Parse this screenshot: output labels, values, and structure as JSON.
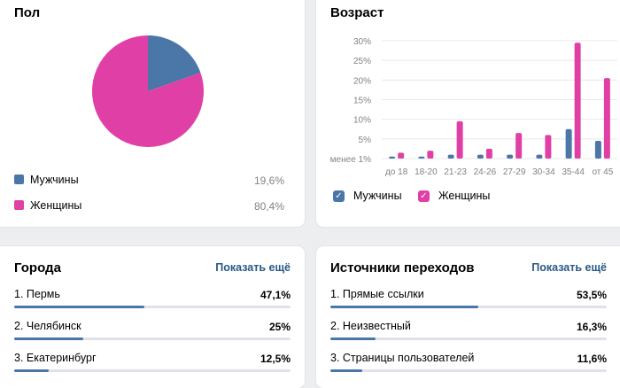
{
  "colors": {
    "male": "#4a76a8",
    "female": "#e040a6",
    "link": "#2a5885",
    "track": "#dfe2e8"
  },
  "gender": {
    "title": "Пол",
    "items": [
      {
        "label": "Мужчины",
        "value": "19,6%",
        "pct": 19.6
      },
      {
        "label": "Женщины",
        "value": "80,4%",
        "pct": 80.4
      }
    ]
  },
  "age": {
    "title": "Возраст",
    "legend": {
      "male": "Мужчины",
      "female": "Женщины"
    }
  },
  "chart_data": {
    "type": "bar",
    "title": "Возраст",
    "categories": [
      "до 18",
      "18-20",
      "21-23",
      "24-26",
      "27-29",
      "30-34",
      "35-44",
      "от 45"
    ],
    "series": [
      {
        "name": "Мужчины",
        "values": [
          0.5,
          0.5,
          1,
          1,
          1,
          1,
          7.5,
          4.5
        ]
      },
      {
        "name": "Женщины",
        "values": [
          1.5,
          2,
          9.5,
          2.5,
          6.5,
          6,
          29.5,
          20.5
        ]
      }
    ],
    "yticks": [
      "менее 1%",
      "5%",
      "10%",
      "15%",
      "20%",
      "25%",
      "30%"
    ],
    "ytick_values": [
      0,
      5,
      10,
      15,
      20,
      25,
      30
    ],
    "ylim": [
      0,
      30
    ],
    "grid": true,
    "legend_position": "bottom"
  },
  "cities": {
    "title": "Города",
    "show_more": "Показать ещё",
    "items": [
      {
        "label": "1. Пермь",
        "value": "47,1%",
        "pct": 47.1
      },
      {
        "label": "2. Челябинск",
        "value": "25%",
        "pct": 25
      },
      {
        "label": "3. Екатеринбург",
        "value": "12,5%",
        "pct": 12.5
      }
    ]
  },
  "sources": {
    "title": "Источники переходов",
    "show_more": "Показать ещё",
    "items": [
      {
        "label": "1. Прямые ссылки",
        "value": "53,5%",
        "pct": 53.5
      },
      {
        "label": "2. Неизвестный",
        "value": "16,3%",
        "pct": 16.3
      },
      {
        "label": "3. Страницы пользователей",
        "value": "11,6%",
        "pct": 11.6
      }
    ]
  }
}
